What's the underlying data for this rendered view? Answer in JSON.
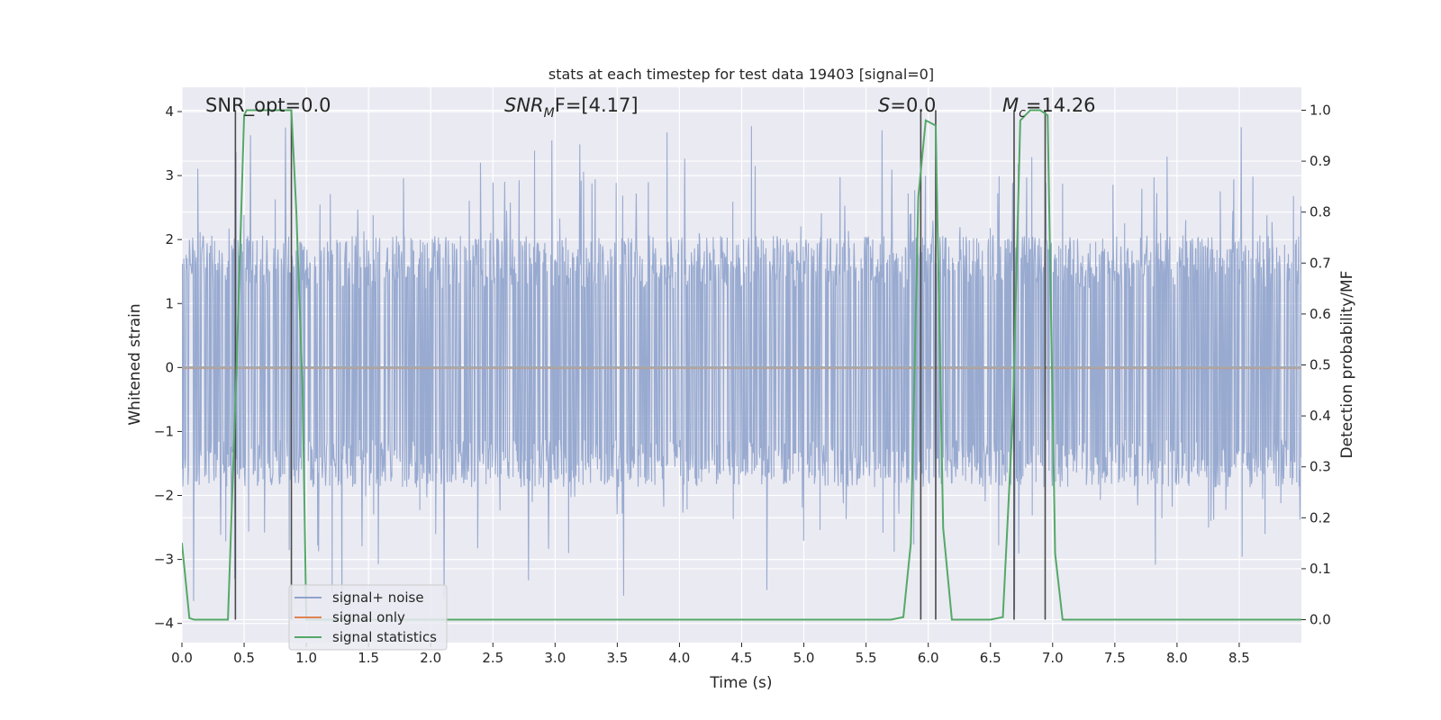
{
  "chart_data": {
    "type": "line",
    "title": "stats at each timestep for test data 19403 [signal=0]",
    "xlabel": "Time (s)",
    "ylabel_left": "Whitened strain",
    "ylabel_right": "Detection probability/MF",
    "xlim": [
      0,
      9
    ],
    "ylim_left": [
      -4.3,
      4.38
    ],
    "ylim_right": [
      -0.045,
      1.045
    ],
    "x_ticks": [
      "0.0",
      "0.5",
      "1.0",
      "1.5",
      "2.0",
      "2.5",
      "3.0",
      "3.5",
      "4.0",
      "4.5",
      "5.0",
      "5.5",
      "6.0",
      "6.5",
      "7.0",
      "7.5",
      "8.0",
      "8.5"
    ],
    "y_ticks_left": [
      4,
      3,
      2,
      1,
      0,
      -1,
      -2,
      -3,
      -4
    ],
    "y_tick_labels_left": [
      "4",
      "3",
      "2",
      "1",
      "0",
      "−1",
      "−2",
      "−3",
      "−4"
    ],
    "y_ticks_right": [
      1.0,
      0.9,
      0.8,
      0.7,
      0.6,
      0.5,
      0.4,
      0.3,
      0.2,
      0.1,
      0.0
    ],
    "y_tick_labels_right": [
      "1.0",
      "0.9",
      "0.8",
      "0.7",
      "0.6",
      "0.5",
      "0.4",
      "0.3",
      "0.2",
      "0.1",
      "0.0"
    ],
    "grid": true,
    "annotations": {
      "snr_opt": "SNR_opt=0.0",
      "snr_mf_sym": "SNR",
      "snr_mf_sub": "M",
      "snr_mf_rest": "F=[4.17]",
      "s_sym": "S",
      "s_rest": "=0.0",
      "mc_sym": "M",
      "mc_sub": "c",
      "mc_rest": "=14.26"
    },
    "legend": {
      "position": "lower-left",
      "entries": [
        {
          "label": "signal+ noise",
          "color": "#8fa3cc"
        },
        {
          "label": "signal only",
          "color": "#dd8452"
        },
        {
          "label": "signal statistics",
          "color": "#55a868"
        }
      ]
    },
    "noise_band": {
      "low": -1.5,
      "high": 1.65,
      "peak_max": 3.95,
      "trough_min": -3.8
    },
    "signal_only": {
      "value": 0.0
    },
    "signal_statistics": {
      "x": [
        0.0,
        0.06,
        0.1,
        0.18,
        0.3,
        0.37,
        0.44,
        0.5,
        0.52,
        0.56,
        0.64,
        0.72,
        0.8,
        0.88,
        0.92,
        0.97,
        1.0,
        1.06,
        5.7,
        5.8,
        5.86,
        5.92,
        5.98,
        6.06,
        6.12,
        6.19,
        6.3,
        6.5,
        6.6,
        6.68,
        6.74,
        6.82,
        6.9,
        6.96,
        7.02,
        7.08,
        7.15,
        9.0
      ],
      "y": [
        0.15,
        0.003,
        0.0,
        0.0,
        0.0,
        0.0,
        0.5,
        0.99,
        1.0,
        1.0,
        1.0,
        1.0,
        1.0,
        1.0,
        0.8,
        0.45,
        0.0,
        0.0,
        0.0,
        0.005,
        0.15,
        0.83,
        0.98,
        0.97,
        0.18,
        0.0,
        0.0,
        0.0,
        0.005,
        0.4,
        0.98,
        1.0,
        1.0,
        0.99,
        0.13,
        0.0,
        0.0,
        0.0
      ]
    },
    "detection_markers_x": [
      0.43,
      0.88,
      5.94,
      6.06,
      6.69,
      6.94
    ]
  },
  "colors": {
    "axes_bg": "#eaeaf2",
    "grid": "#ffffff",
    "noise": "#8fa3cc",
    "signal_only": "#dd8452",
    "statistics": "#55a868",
    "marker": "#4a4a4a",
    "zero_line": "#a8a8a8"
  }
}
